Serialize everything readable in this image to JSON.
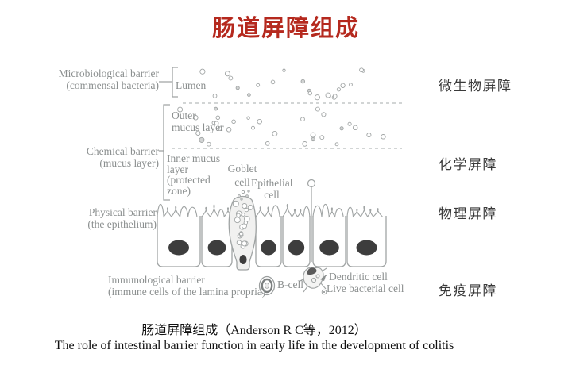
{
  "title": "肠道屏障组成",
  "colors": {
    "title_red": "#b5291e",
    "diagram_stroke": "#a0a4a4",
    "label_gray": "#8b8f8f",
    "nucleus_dark": "#3d3d3d"
  },
  "left_labels": {
    "microbiological": {
      "line1": "Microbiological barrier",
      "line2": "(commensal bacteria)"
    },
    "chemical": {
      "line1": "Chemical barrier",
      "line2": "(mucus layer)"
    },
    "physical": {
      "line1": "Physical barrier",
      "line2": "(the epithelium)"
    },
    "immunological": {
      "line1": "Immunological barrier",
      "line2": "(immune cells of the lamina propria)"
    }
  },
  "diagram_labels": {
    "lumen": "Lumen",
    "outer_mucus_line1": "Outer",
    "outer_mucus_line2": "mucus layer",
    "inner_mucus_line1": "Inner mucus",
    "inner_mucus_line2": "layer",
    "inner_mucus_line3": "(protected",
    "inner_mucus_line4": "zone)",
    "goblet_line1": "Goblet",
    "goblet_line2": "cell",
    "epithelial_line1": "Epithelial",
    "epithelial_line2": "cell",
    "b_cell": "B-cell",
    "dendritic_cell": "Dendritic cell",
    "live_bacterial_cell": "Live bacterial cell"
  },
  "right_labels": [
    "微生物屏障",
    "化学屏障",
    "物理屏障",
    "免疫屏障"
  ],
  "caption": {
    "line1": "肠道屏障组成（Anderson R C等，2012）",
    "line2": "The role of intestinal barrier function in early life in the development of colitis"
  }
}
